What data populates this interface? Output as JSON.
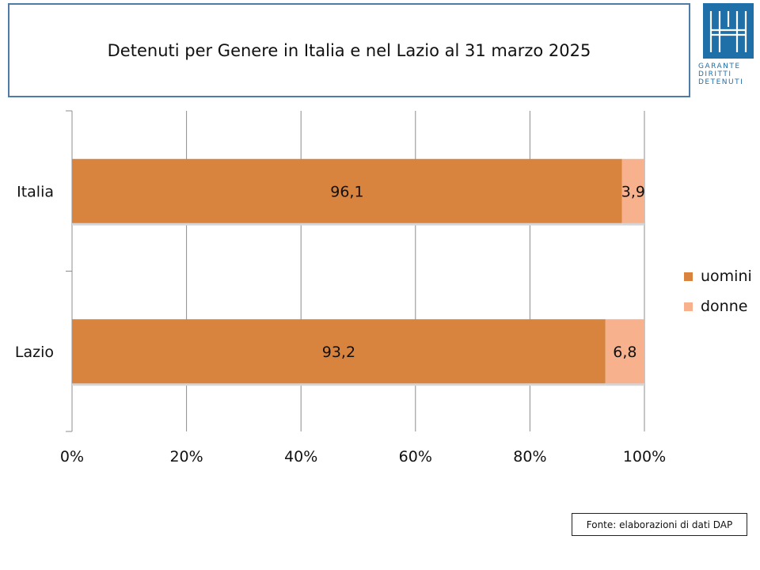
{
  "title": "Detenuti per Genere in Italia e nel Lazio al 31 marzo 2025",
  "logo": {
    "lines": [
      "GARANTE",
      "DIRITTI",
      "DETENUTI"
    ],
    "color": "#1f6fa8"
  },
  "source": "Fonte: elaborazioni di dati DAP",
  "chart_data": {
    "type": "bar",
    "orientation": "horizontal",
    "stacked": "percent",
    "categories": [
      "Italia",
      "Lazio"
    ],
    "series": [
      {
        "name": "uomini",
        "values": [
          96.1,
          93.2
        ],
        "labels": [
          "96,1",
          "93,2"
        ],
        "color": "#d9843e"
      },
      {
        "name": "donne",
        "values": [
          3.9,
          6.8
        ],
        "labels": [
          "3,9",
          "6,8"
        ],
        "color": "#f7b28d"
      }
    ],
    "xlim": [
      0,
      100
    ],
    "xticks": [
      "0%",
      "20%",
      "40%",
      "60%",
      "80%",
      "100%"
    ],
    "grid": "vertical",
    "legend": "right"
  }
}
